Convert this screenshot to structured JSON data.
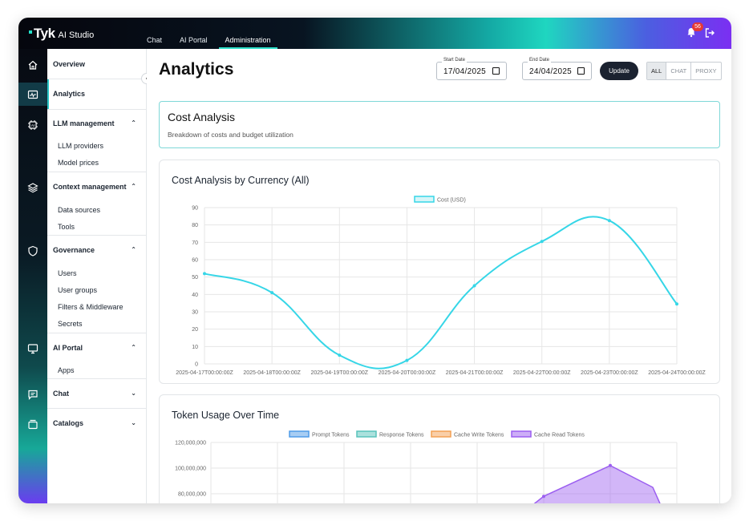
{
  "app": {
    "logo": "Tyk",
    "product": "AI Studio"
  },
  "tabs": [
    {
      "label": "Chat"
    },
    {
      "label": "AI Portal"
    },
    {
      "label": "Administration"
    }
  ],
  "notifications": {
    "count": "56"
  },
  "sidebar": {
    "overview": "Overview",
    "analytics": "Analytics",
    "llm_management": "LLM management",
    "llm_providers": "LLM providers",
    "model_prices": "Model prices",
    "context_management": "Context management",
    "data_sources": "Data sources",
    "tools": "Tools",
    "governance": "Governance",
    "users": "Users",
    "user_groups": "User groups",
    "filters": "Filters & Middleware",
    "secrets": "Secrets",
    "ai_portal": "AI Portal",
    "apps": "Apps",
    "chat": "Chat",
    "catalogs": "Catalogs"
  },
  "header": {
    "title": "Analytics",
    "start_label": "Start Date",
    "start_value": "17/04/2025",
    "end_label": "End Date",
    "end_value": "24/04/2025",
    "update": "Update",
    "filters": [
      "ALL",
      "CHAT",
      "PROXY"
    ]
  },
  "cost_card": {
    "title": "Cost Analysis",
    "subtitle": "Breakdown of costs and budget utilization"
  },
  "chart_data": [
    {
      "type": "line",
      "title": "Cost Analysis by Currency (All)",
      "categories": [
        "2025-04-17T00:00:00Z",
        "2025-04-18T00:00:00Z",
        "2025-04-19T00:00:00Z",
        "2025-04-20T00:00:00Z",
        "2025-04-21T00:00:00Z",
        "2025-04-22T00:00:00Z",
        "2025-04-23T00:00:00Z",
        "2025-04-24T00:00:00Z"
      ],
      "series": [
        {
          "name": "Cost (USD)",
          "values": [
            52,
            41,
            5,
            2,
            45,
            70.5,
            82.5,
            34.5
          ]
        }
      ],
      "ylim": [
        0,
        90
      ],
      "yticks": [
        0,
        10,
        20,
        30,
        40,
        50,
        60,
        70,
        80,
        90
      ],
      "legend": "top-center",
      "grid": true,
      "color": "#36d6e7"
    },
    {
      "type": "area",
      "title": "Token Usage Over Time",
      "series": [
        {
          "name": "Prompt Tokens",
          "color": "#4f9be8"
        },
        {
          "name": "Response Tokens",
          "color": "#58c3bb"
        },
        {
          "name": "Cache Write Tokens",
          "color": "#f3a054"
        },
        {
          "name": "Cache Read Tokens",
          "color": "#9b5ef0",
          "values_visible": [
            null,
            null,
            null,
            null,
            null,
            78000000,
            102000000,
            70000000
          ]
        }
      ],
      "yticks_visible": [
        "120,000,000",
        "100,000,000",
        "80,000,000"
      ],
      "legend": "top-center",
      "grid": true
    }
  ]
}
